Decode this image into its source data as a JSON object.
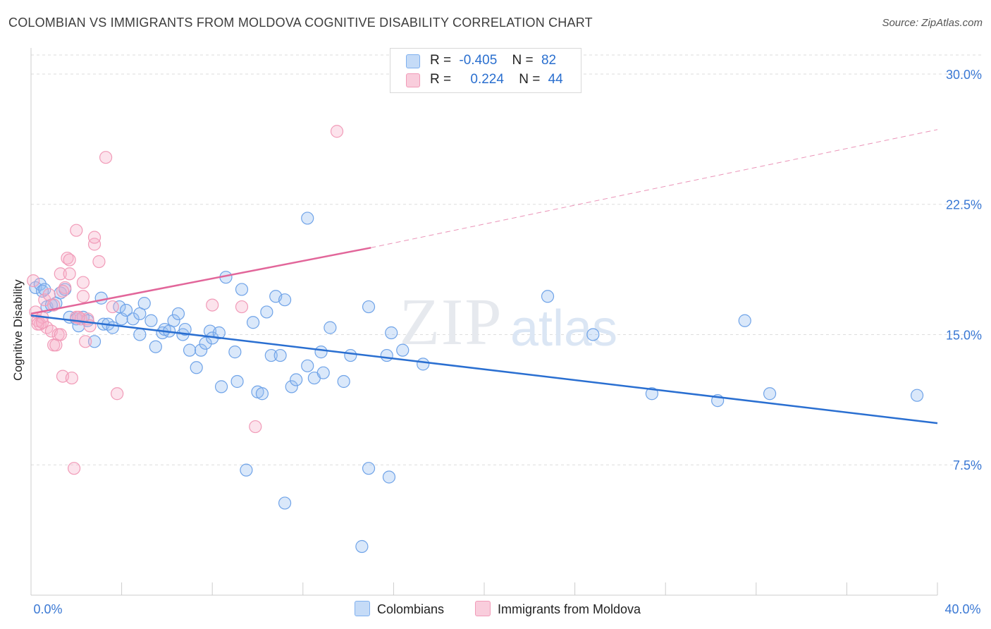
{
  "title": "COLOMBIAN VS IMMIGRANTS FROM MOLDOVA COGNITIVE DISABILITY CORRELATION CHART",
  "source": "Source: ZipAtlas.com",
  "watermark": {
    "zip": "ZIP",
    "atlas": "atlas"
  },
  "legend": [
    {
      "r_label": "R =",
      "r_value": "-0.405",
      "n_label": "N =",
      "n_value": "82",
      "color": "#7fb0ef",
      "fill": "#c5dbf7"
    },
    {
      "r_label": "R =",
      "r_value": "0.224",
      "n_label": "N =",
      "n_value": "44",
      "color": "#f19bb8",
      "fill": "#f9cddc"
    }
  ],
  "bottom_legend": [
    "Colombians",
    "Immigrants from Moldova"
  ],
  "chart_data": {
    "type": "scatter",
    "title": "COLOMBIAN VS IMMIGRANTS FROM MOLDOVA COGNITIVE DISABILITY CORRELATION CHART",
    "xlabel": "",
    "ylabel": "Cognitive Disability",
    "xlim": [
      0,
      40
    ],
    "ylim": [
      0,
      31.5
    ],
    "x_tick_labels": [
      "0.0%",
      "40.0%"
    ],
    "y_ticks": [
      7.5,
      15.0,
      22.5,
      30.0
    ],
    "y_tick_labels": [
      "7.5%",
      "15.0%",
      "22.5%",
      "30.0%"
    ],
    "grid": "horizontal dashed",
    "legend_position": "top-center",
    "series": [
      {
        "name": "Colombians",
        "color": "#6fa3e8",
        "fill": "rgba(150,190,240,0.35)",
        "trend": {
          "x": [
            0,
            40
          ],
          "y": [
            16.1,
            9.9
          ],
          "color": "#2a6fd1"
        },
        "points": [
          [
            0.2,
            17.7
          ],
          [
            0.4,
            17.9
          ],
          [
            0.5,
            17.5
          ],
          [
            0.7,
            16.6
          ],
          [
            0.9,
            16.7
          ],
          [
            1.3,
            17.4
          ],
          [
            1.5,
            17.6
          ],
          [
            1.7,
            16.0
          ],
          [
            2.0,
            15.9
          ],
          [
            2.1,
            15.5
          ],
          [
            2.3,
            16.0
          ],
          [
            2.5,
            15.8
          ],
          [
            2.8,
            14.6
          ],
          [
            3.1,
            17.1
          ],
          [
            3.2,
            15.6
          ],
          [
            3.4,
            15.6
          ],
          [
            3.6,
            15.4
          ],
          [
            3.9,
            16.6
          ],
          [
            4.0,
            15.9
          ],
          [
            4.2,
            16.4
          ],
          [
            4.5,
            15.9
          ],
          [
            4.8,
            15.0
          ],
          [
            4.8,
            16.2
          ],
          [
            5.0,
            16.8
          ],
          [
            5.3,
            15.8
          ],
          [
            5.5,
            14.3
          ],
          [
            5.8,
            15.1
          ],
          [
            5.9,
            15.3
          ],
          [
            6.1,
            15.2
          ],
          [
            6.3,
            15.8
          ],
          [
            6.5,
            16.2
          ],
          [
            6.7,
            15.0
          ],
          [
            6.8,
            15.3
          ],
          [
            7.0,
            14.1
          ],
          [
            7.3,
            13.1
          ],
          [
            7.5,
            14.1
          ],
          [
            7.7,
            14.5
          ],
          [
            7.9,
            15.2
          ],
          [
            8.0,
            14.8
          ],
          [
            8.3,
            15.1
          ],
          [
            8.4,
            12.0
          ],
          [
            8.6,
            18.3
          ],
          [
            9.0,
            14.0
          ],
          [
            9.1,
            12.3
          ],
          [
            9.3,
            17.6
          ],
          [
            9.5,
            7.2
          ],
          [
            9.8,
            15.7
          ],
          [
            10.0,
            11.7
          ],
          [
            10.2,
            11.6
          ],
          [
            10.4,
            16.3
          ],
          [
            10.6,
            13.8
          ],
          [
            10.8,
            17.2
          ],
          [
            11.0,
            13.8
          ],
          [
            11.2,
            17.0
          ],
          [
            11.5,
            12.0
          ],
          [
            11.7,
            12.4
          ],
          [
            12.2,
            13.2
          ],
          [
            12.5,
            12.5
          ],
          [
            12.8,
            14.0
          ],
          [
            12.9,
            12.8
          ],
          [
            13.2,
            15.4
          ],
          [
            13.8,
            12.3
          ],
          [
            14.1,
            13.8
          ],
          [
            14.9,
            16.6
          ],
          [
            15.7,
            13.8
          ],
          [
            15.9,
            15.1
          ],
          [
            16.4,
            14.1
          ],
          [
            17.3,
            13.3
          ],
          [
            12.2,
            21.7
          ],
          [
            11.2,
            5.3
          ],
          [
            14.9,
            7.3
          ],
          [
            15.8,
            6.8
          ],
          [
            14.6,
            2.8
          ],
          [
            22.8,
            17.2
          ],
          [
            24.8,
            15.0
          ],
          [
            27.4,
            11.6
          ],
          [
            31.5,
            15.8
          ],
          [
            30.3,
            11.2
          ],
          [
            32.6,
            11.6
          ],
          [
            39.1,
            11.5
          ],
          [
            0.6,
            17.6
          ],
          [
            1.1,
            16.8
          ]
        ]
      },
      {
        "name": "Immigrants from Moldova",
        "color": "#f19bb8",
        "fill": "rgba(245,175,200,0.35)",
        "trend": {
          "x": [
            0,
            15
          ],
          "y": [
            16.2,
            20.0
          ],
          "color": "#e2669a",
          "dashed_extension": {
            "x": [
              15,
              40
            ],
            "y": [
              20.0,
              26.8
            ]
          }
        },
        "points": [
          [
            0.1,
            18.1
          ],
          [
            0.2,
            16.3
          ],
          [
            0.3,
            15.8
          ],
          [
            0.4,
            15.6
          ],
          [
            0.5,
            16.0
          ],
          [
            0.6,
            17.0
          ],
          [
            0.7,
            15.4
          ],
          [
            0.8,
            17.3
          ],
          [
            0.9,
            15.2
          ],
          [
            1.0,
            14.4
          ],
          [
            1.0,
            16.7
          ],
          [
            1.1,
            14.4
          ],
          [
            1.2,
            15.0
          ],
          [
            1.3,
            15.0
          ],
          [
            1.3,
            18.5
          ],
          [
            1.4,
            12.6
          ],
          [
            1.5,
            17.7
          ],
          [
            1.6,
            19.4
          ],
          [
            1.7,
            19.3
          ],
          [
            1.7,
            18.5
          ],
          [
            1.8,
            12.5
          ],
          [
            1.9,
            7.3
          ],
          [
            2.0,
            16.0
          ],
          [
            2.0,
            21.0
          ],
          [
            2.2,
            15.9
          ],
          [
            2.3,
            17.2
          ],
          [
            2.3,
            18.0
          ],
          [
            2.4,
            14.6
          ],
          [
            2.5,
            15.9
          ],
          [
            2.6,
            15.5
          ],
          [
            2.8,
            20.2
          ],
          [
            2.8,
            20.6
          ],
          [
            3.0,
            19.2
          ],
          [
            3.3,
            25.2
          ],
          [
            3.6,
            16.6
          ],
          [
            3.8,
            11.6
          ],
          [
            8.0,
            16.7
          ],
          [
            9.3,
            16.6
          ],
          [
            9.9,
            9.7
          ],
          [
            13.5,
            26.7
          ],
          [
            0.3,
            15.6
          ],
          [
            0.5,
            15.7
          ],
          [
            2.1,
            16.0
          ],
          [
            1.4,
            17.5
          ]
        ]
      }
    ]
  }
}
